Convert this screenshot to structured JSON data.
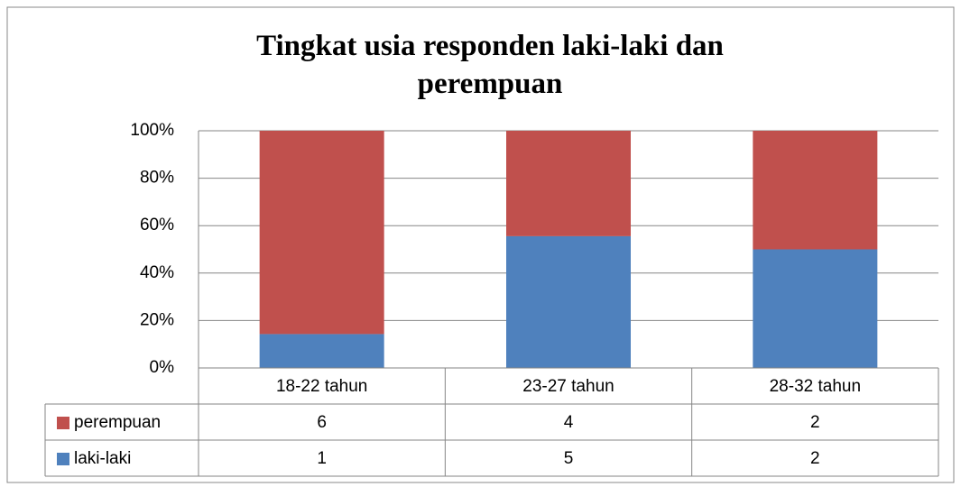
{
  "chart_data": {
    "type": "bar",
    "stacking": "percent",
    "title": "Tingkat usia responden laki-laki dan perempuan",
    "categories": [
      "18-22 tahun",
      "23-27 tahun",
      "28-32 tahun"
    ],
    "series": [
      {
        "name": "perempuan",
        "color": "#c0504d",
        "values": [
          6,
          4,
          2
        ]
      },
      {
        "name": "laki-laki",
        "color": "#4f81bd",
        "values": [
          1,
          5,
          2
        ]
      }
    ],
    "ylim": [
      0,
      100
    ],
    "yticks": [
      {
        "value": 0,
        "label": "0%"
      },
      {
        "value": 20,
        "label": "20%"
      },
      {
        "value": 40,
        "label": "40%"
      },
      {
        "value": 60,
        "label": "60%"
      },
      {
        "value": 80,
        "label": "80%"
      },
      {
        "value": 100,
        "label": "100%"
      }
    ],
    "grid": true,
    "data_table": true
  }
}
